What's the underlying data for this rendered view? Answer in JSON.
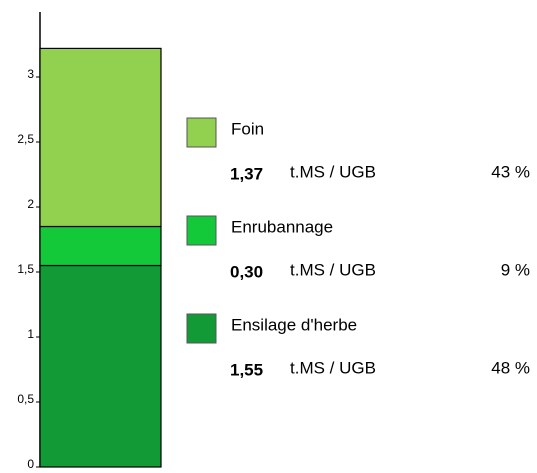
{
  "chart_data": {
    "type": "stacked_bar",
    "categories": [
      null
    ],
    "series": [
      {
        "name": "Foin",
        "color": "#92d050",
        "values": [
          1.37
        ],
        "value_labels": [
          "1,37"
        ],
        "percents": [
          43
        ],
        "percent_labels": [
          "43 %"
        ]
      },
      {
        "name": "Enrubannage",
        "color": "#13c93a",
        "values": [
          0.3
        ],
        "value_labels": [
          "0,30"
        ],
        "percents": [
          9
        ],
        "percent_labels": [
          "9 %"
        ]
      },
      {
        "name": "Ensilage d'herbe",
        "color": "#129a37",
        "values": [
          1.55
        ],
        "value_labels": [
          "1,55"
        ],
        "percents": [
          48
        ],
        "percent_labels": [
          "48 %"
        ]
      }
    ],
    "unit": "t.MS / UGB",
    "ylim": [
      0,
      3.5
    ],
    "yticks": [
      0,
      {
        "value": 0.5,
        "label": "0,5"
      },
      1,
      {
        "value": 1.5,
        "label": "1,5"
      },
      2,
      {
        "value": 2.5,
        "label": "2,5"
      },
      3
    ],
    "grid": false
  }
}
